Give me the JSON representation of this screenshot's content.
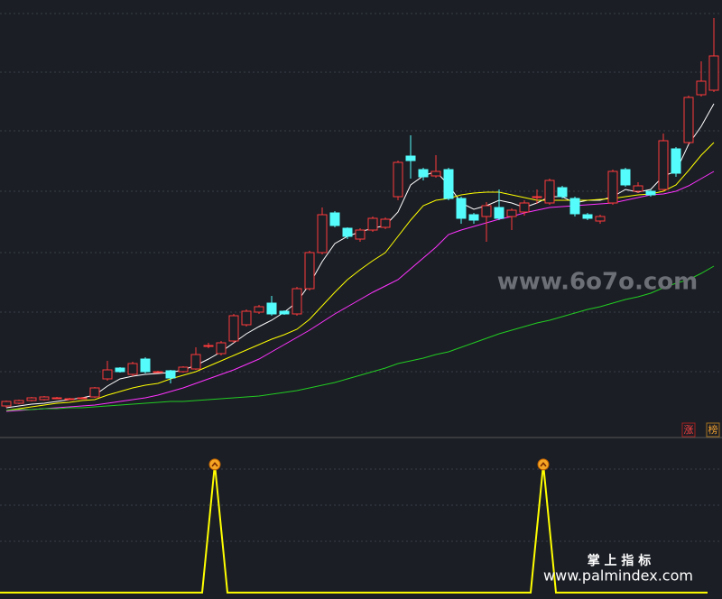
{
  "chart_data": [
    {
      "type": "candlestick",
      "ylim": [
        0,
        484
      ],
      "up_color": "#ff3b3b",
      "down_color": "#54fcfc",
      "open": [
        34,
        37,
        40,
        41,
        43,
        42,
        43,
        44,
        64,
        76,
        69,
        86,
        72,
        73,
        72,
        75,
        101,
        92,
        106,
        124,
        138,
        148,
        139,
        136,
        164,
        204,
        248,
        231,
        219,
        229,
        232,
        266,
        311,
        296,
        289,
        296,
        264,
        246,
        244,
        254,
        244,
        249,
        266,
        259,
        276,
        264,
        246,
        239,
        259,
        296,
        272,
        272,
        274,
        319,
        326,
        379,
        384
      ],
      "high": [
        40,
        41,
        44,
        45,
        44,
        43,
        44,
        55,
        84,
        77,
        83,
        88,
        73,
        74,
        78,
        99,
        104,
        106,
        136,
        141,
        146,
        156,
        140,
        166,
        206,
        254,
        250,
        232,
        231,
        244,
        243,
        306,
        334,
        298,
        312,
        298,
        266,
        248,
        260,
        274,
        253,
        262,
        274,
        286,
        278,
        266,
        248,
        246,
        296,
        298,
        282,
        274,
        336,
        321,
        378,
        416,
        464
      ],
      "low": [
        32,
        36,
        39,
        40,
        42,
        41,
        42,
        43,
        62,
        71,
        67,
        70,
        71,
        59,
        71,
        74,
        98,
        90,
        104,
        122,
        136,
        134,
        135,
        134,
        162,
        202,
        232,
        219,
        216,
        227,
        230,
        262,
        286,
        284,
        287,
        262,
        236,
        236,
        216,
        240,
        229,
        245,
        258,
        257,
        264,
        244,
        240,
        236,
        257,
        277,
        270,
        266,
        272,
        288,
        324,
        377,
        382
      ],
      "close": [
        39,
        40,
        43,
        44,
        43,
        42,
        43,
        54,
        74,
        72,
        81,
        72,
        72,
        65,
        77,
        91,
        101,
        104,
        134,
        139,
        144,
        136,
        136,
        164,
        204,
        246,
        234,
        222,
        229,
        242,
        241,
        304,
        306,
        288,
        294,
        264,
        242,
        240,
        256,
        242,
        251,
        259,
        266,
        284,
        266,
        247,
        242,
        244,
        294,
        279,
        278,
        268,
        328,
        292,
        376,
        394,
        422
      ],
      "lines": [
        {
          "color": "#ffffff",
          "values": [
            32,
            34,
            36,
            37,
            39,
            41,
            43,
            46,
            56,
            64,
            67,
            69,
            70,
            71,
            74,
            79,
            86,
            94,
            104,
            114,
            122,
            129,
            138,
            149,
            169,
            194,
            214,
            222,
            227,
            231,
            234,
            249,
            279,
            289,
            294,
            279,
            259,
            252,
            256,
            262,
            259,
            254,
            259,
            266,
            266,
            259,
            262,
            262,
            266,
            274,
            271,
            274,
            289,
            294,
            324,
            344,
            369
          ]
        },
        {
          "color": "#ffff00",
          "values": [
            29,
            31,
            33,
            35,
            37,
            38,
            40,
            41,
            46,
            50,
            54,
            57,
            59,
            64,
            68,
            72,
            78,
            84,
            90,
            96,
            102,
            108,
            113,
            119,
            130,
            145,
            160,
            174,
            185,
            195,
            204,
            222,
            240,
            256,
            262,
            264,
            268,
            270,
            271,
            271,
            268,
            265,
            262,
            262,
            262,
            262,
            262,
            263,
            264,
            266,
            268,
            269,
            272,
            279,
            295,
            312,
            326
          ]
        },
        {
          "color": "#ff33ff",
          "values": [
            28,
            29,
            30,
            31,
            32,
            33,
            34,
            35,
            37,
            39,
            41,
            43,
            46,
            50,
            54,
            59,
            64,
            69,
            74,
            80,
            86,
            94,
            102,
            110,
            118,
            127,
            136,
            144,
            152,
            160,
            167,
            174,
            186,
            198,
            210,
            224,
            229,
            233,
            237,
            241,
            244,
            248,
            251,
            254,
            255,
            256,
            257,
            258,
            259,
            262,
            265,
            268,
            269,
            272,
            278,
            286,
            294
          ]
        },
        {
          "color": "#22cc22",
          "values": [
            29,
            30,
            30,
            31,
            31,
            32,
            32,
            33,
            34,
            35,
            36,
            37,
            38,
            39,
            39,
            40,
            41,
            42,
            43,
            44,
            45,
            47,
            49,
            51,
            54,
            57,
            60,
            64,
            68,
            72,
            76,
            81,
            84,
            87,
            91,
            94,
            99,
            104,
            109,
            114,
            118,
            122,
            126,
            129,
            133,
            137,
            141,
            144,
            148,
            152,
            155,
            159,
            165,
            170,
            174,
            181,
            189
          ]
        }
      ],
      "annotations": [
        "www.6o7o.com",
        "涨",
        "榜"
      ]
    },
    {
      "type": "line",
      "ylim": [
        -0.05,
        1.21
      ],
      "color": "#ffff00",
      "marker_color": "#f5a623",
      "values": [
        0,
        0,
        0,
        0,
        0,
        0,
        0,
        0,
        0,
        0,
        0,
        0,
        0,
        0,
        0,
        0,
        0,
        1,
        0,
        0,
        0,
        0,
        0,
        0,
        0,
        0,
        0,
        0,
        0,
        0,
        0,
        0,
        0,
        0,
        0,
        0,
        0,
        0,
        0,
        0,
        0,
        0,
        0,
        1,
        0,
        0,
        0,
        0,
        0,
        0,
        0,
        0,
        0,
        0,
        0,
        0,
        0
      ],
      "annotations": [
        "掌 上 指 标",
        "www.palmindex.com"
      ]
    }
  ]
}
